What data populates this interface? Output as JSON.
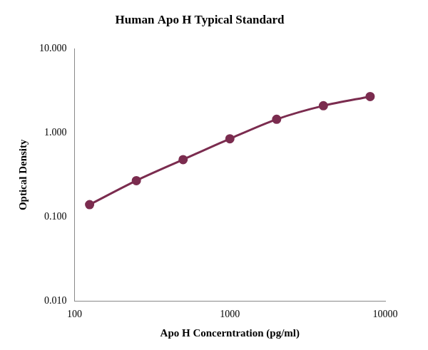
{
  "chart_data": {
    "type": "line",
    "title": "Human Apo H Typical Standard",
    "x_label": "Apo H Concerntration (pg/ml)",
    "y_label": "Optical Density",
    "x": [
      125,
      250,
      500,
      1000,
      2000,
      4000,
      8000
    ],
    "values": [
      0.14,
      0.27,
      0.48,
      0.85,
      1.45,
      2.1,
      2.7
    ],
    "color": "#7b2c4f",
    "marker": "circle",
    "line_style": "solid",
    "log": true,
    "grid": false,
    "xlim": [
      100,
      10000
    ],
    "xticks": [
      100,
      1000,
      10000
    ],
    "ylim": [
      0.01,
      10
    ],
    "yticks": [
      {
        "value": 0.01,
        "label": "0.010"
      },
      {
        "value": 0.1,
        "label": "0.100"
      },
      {
        "value": 1,
        "label": "1.000"
      },
      {
        "value": 10,
        "label": "10.000"
      }
    ]
  }
}
